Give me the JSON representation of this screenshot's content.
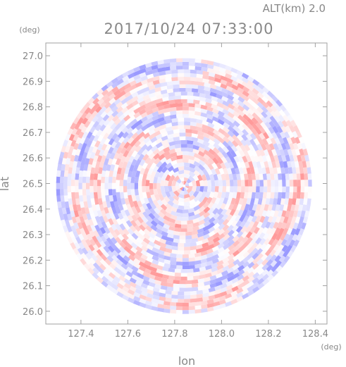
{
  "chart_data": {
    "type": "heatmap",
    "title": "2017/10/24 07:33:00",
    "subtitle": "ALT(km) 2.0",
    "xlabel": "lon",
    "ylabel": "lat",
    "x_unit": "(deg)",
    "y_unit": "(deg)",
    "xlim": [
      127.25,
      128.45
    ],
    "ylim": [
      25.95,
      27.05
    ],
    "x_ticks": [
      "127.4",
      "127.6",
      "127.8",
      "128.0",
      "128.2",
      "128.4"
    ],
    "x_tick_values": [
      127.4,
      127.6,
      127.8,
      128.0,
      128.2,
      128.4
    ],
    "y_ticks": [
      "26.0",
      "26.1",
      "26.2",
      "26.3",
      "26.4",
      "26.5",
      "26.6",
      "26.7",
      "26.8",
      "26.9",
      "27.0"
    ],
    "y_tick_values": [
      26.0,
      26.1,
      26.2,
      26.3,
      26.4,
      26.5,
      26.6,
      26.7,
      26.8,
      26.9,
      27.0
    ],
    "radar_center": {
      "lon": 127.84,
      "lat": 26.49
    },
    "radar_radius_deg": 0.54,
    "colors": {
      "positive": "#ff9a9a",
      "negative": "#9a9aff",
      "neutral": "#ffffff",
      "axis": "#a0a0a0",
      "text": "#888888"
    },
    "grid": false,
    "legend": "none"
  }
}
